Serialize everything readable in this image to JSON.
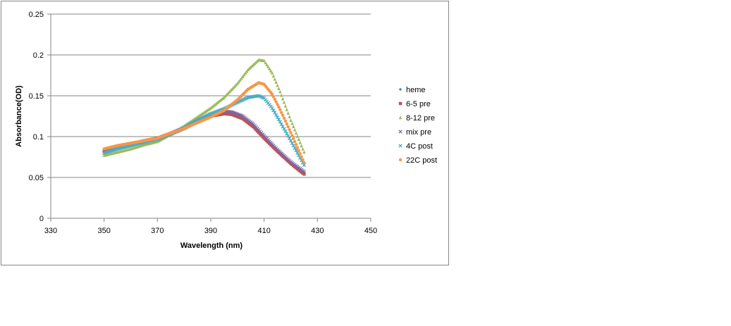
{
  "chart_data": {
    "type": "scatter",
    "title": "",
    "xlabel": "Wavelength (nm)",
    "ylabel": "Absorbance(OD)",
    "xlim": [
      330,
      450
    ],
    "ylim": [
      0,
      0.25
    ],
    "xticks": [
      "330",
      "350",
      "370",
      "390",
      "410",
      "430",
      "450"
    ],
    "yticks": [
      "0",
      "0.05",
      "0.1",
      "0.15",
      "0.2",
      "0.25"
    ],
    "grid": "horizontal",
    "legend_position": "right",
    "series": [
      {
        "name": "heme",
        "color": "#4F81BD",
        "marker": "diamond",
        "x": [
          350,
          355,
          360,
          365,
          370,
          375,
          380,
          385,
          390,
          395,
          398,
          402,
          406,
          410,
          415,
          420,
          425
        ],
        "y": [
          0.081,
          0.086,
          0.09,
          0.094,
          0.098,
          0.104,
          0.111,
          0.119,
          0.126,
          0.129,
          0.128,
          0.123,
          0.113,
          0.099,
          0.083,
          0.068,
          0.056
        ]
      },
      {
        "name": "6-5 pre",
        "color": "#C0504D",
        "marker": "square",
        "x": [
          350,
          355,
          360,
          365,
          370,
          375,
          380,
          385,
          390,
          395,
          398,
          402,
          406,
          410,
          415,
          420,
          425
        ],
        "y": [
          0.082,
          0.087,
          0.091,
          0.095,
          0.098,
          0.104,
          0.111,
          0.119,
          0.125,
          0.128,
          0.127,
          0.122,
          0.112,
          0.098,
          0.082,
          0.067,
          0.054
        ]
      },
      {
        "name": "8-12 pre",
        "color": "#9BBB59",
        "marker": "triangle",
        "x": [
          350,
          355,
          360,
          365,
          370,
          375,
          380,
          385,
          390,
          395,
          400,
          404,
          408,
          410,
          413,
          416,
          420,
          425
        ],
        "y": [
          0.077,
          0.081,
          0.085,
          0.09,
          0.094,
          0.103,
          0.113,
          0.124,
          0.135,
          0.148,
          0.165,
          0.182,
          0.194,
          0.193,
          0.178,
          0.155,
          0.12,
          0.081
        ]
      },
      {
        "name": "mix pre",
        "color": "#8064A2",
        "marker": "x",
        "x": [
          350,
          355,
          360,
          365,
          370,
          375,
          380,
          385,
          390,
          395,
          398,
          402,
          406,
          410,
          415,
          420,
          425
        ],
        "y": [
          0.08,
          0.085,
          0.089,
          0.093,
          0.097,
          0.103,
          0.11,
          0.119,
          0.127,
          0.131,
          0.13,
          0.125,
          0.115,
          0.101,
          0.084,
          0.069,
          0.057
        ]
      },
      {
        "name": "4C post",
        "color": "#4BACC6",
        "marker": "x",
        "x": [
          350,
          355,
          360,
          365,
          370,
          375,
          380,
          385,
          390,
          395,
          400,
          404,
          408,
          410,
          413,
          416,
          420,
          425
        ],
        "y": [
          0.08,
          0.085,
          0.089,
          0.093,
          0.097,
          0.103,
          0.111,
          0.12,
          0.128,
          0.134,
          0.142,
          0.148,
          0.15,
          0.147,
          0.135,
          0.118,
          0.095,
          0.065
        ]
      },
      {
        "name": "22C post",
        "color": "#F79646",
        "marker": "circle",
        "x": [
          350,
          355,
          360,
          365,
          370,
          375,
          380,
          385,
          390,
          395,
          400,
          404,
          408,
          410,
          413,
          416,
          420,
          425
        ],
        "y": [
          0.085,
          0.089,
          0.092,
          0.095,
          0.098,
          0.104,
          0.11,
          0.117,
          0.124,
          0.132,
          0.145,
          0.158,
          0.166,
          0.164,
          0.152,
          0.133,
          0.105,
          0.068
        ]
      }
    ]
  }
}
